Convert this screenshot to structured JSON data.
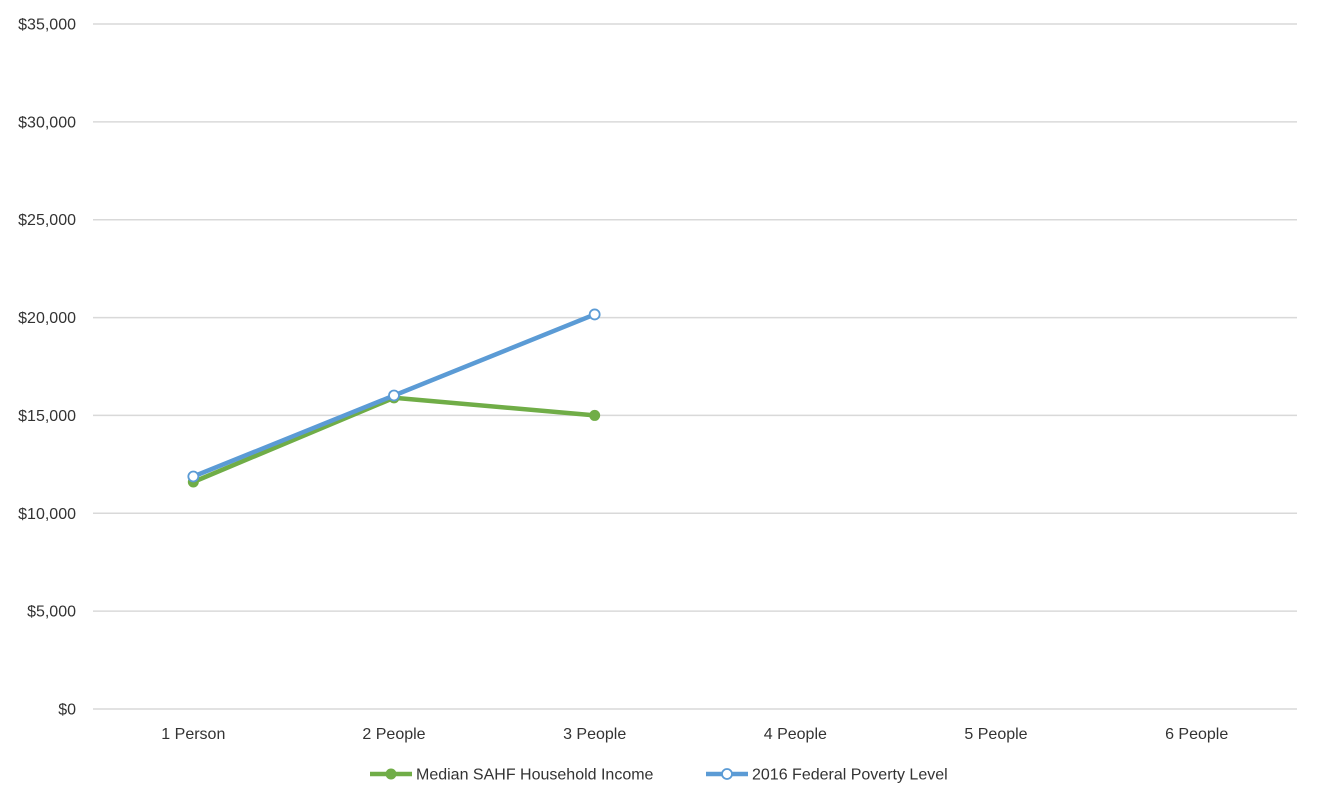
{
  "chart_data": {
    "type": "line",
    "title": "",
    "xlabel": "",
    "ylabel": "",
    "categories": [
      "1 Person",
      "2 People",
      "3 People",
      "4 People",
      "5 People",
      "6 People"
    ],
    "ylim": [
      0,
      35000
    ],
    "y_ticks": [
      0,
      5000,
      10000,
      15000,
      20000,
      25000,
      30000,
      35000
    ],
    "y_tick_labels": [
      "$0",
      "$5,000",
      "$10,000",
      "$15,000",
      "$20,000",
      "$25,000",
      "$30,000",
      "$35,000"
    ],
    "grid": true,
    "legend_position": "bottom",
    "series": [
      {
        "name": "Median SAHF Household Income",
        "color": "#70ad47",
        "marker": "filled-circle",
        "values": [
          11600,
          15900,
          15000,
          null,
          null,
          null
        ]
      },
      {
        "name": "2016 Federal Poverty Level",
        "color": "#5b9bd5",
        "marker": "hollow-circle",
        "values": [
          11880,
          16020,
          20160,
          null,
          null,
          null
        ]
      }
    ]
  }
}
